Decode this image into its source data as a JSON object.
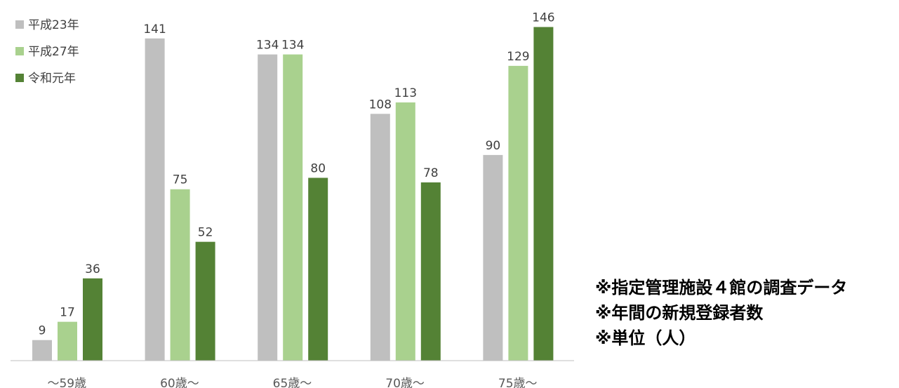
{
  "chart_data": {
    "type": "bar",
    "categories": [
      "～59歳",
      "60歳～",
      "65歳～",
      "70歳～",
      "75歳～"
    ],
    "series": [
      {
        "name": "平成23年",
        "color": "#BFBFBF",
        "values": [
          9,
          141,
          134,
          108,
          90
        ]
      },
      {
        "name": "平成27年",
        "color": "#A9D18E",
        "values": [
          17,
          75,
          134,
          113,
          129
        ]
      },
      {
        "name": "令和元年",
        "color": "#548235",
        "values": [
          36,
          52,
          80,
          78,
          146
        ]
      }
    ],
    "ylim": [
      0,
      155
    ],
    "grid": false,
    "legend": "top-left",
    "data_labels": true
  },
  "notes": [
    "※指定管理施設４館の調査データ",
    "※年間の新規登録者数",
    "※単位（人）"
  ]
}
